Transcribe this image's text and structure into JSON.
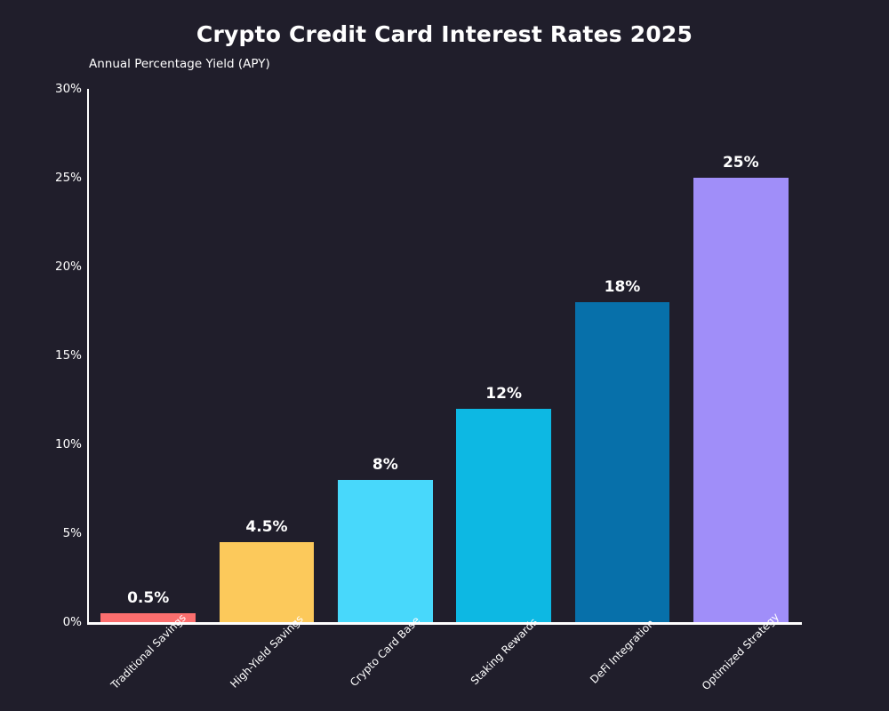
{
  "figure": {
    "background": "#201e2b",
    "axis_color": "#ffffff",
    "text_color": "#ffffff"
  },
  "chart_data": {
    "type": "bar",
    "title": "Crypto Credit Card Interest Rates 2025",
    "subtitle": "Annual Percentage Yield (APY)",
    "categories": [
      "Traditional Savings",
      "High-Yield Savings",
      "Crypto Card Base",
      "Staking Rewards",
      "DeFi Integration",
      "Optimized Strategy"
    ],
    "values": [
      0.5,
      4.5,
      8,
      12,
      18,
      25
    ],
    "value_labels": [
      "0.5%",
      "4.5%",
      "8%",
      "12%",
      "18%",
      "25%"
    ],
    "bar_colors": [
      "#fb6e6e",
      "#fcc95b",
      "#48d8fb",
      "#0db8e3",
      "#0770aa",
      "#a08ef9"
    ],
    "xlabel": "",
    "ylabel": "",
    "ylim": [
      0,
      30
    ],
    "yticks": [
      0,
      5,
      10,
      15,
      20,
      25,
      30
    ],
    "ytick_labels": [
      "0%",
      "5%",
      "10%",
      "15%",
      "20%",
      "25%",
      "30%"
    ],
    "grid": false,
    "legend": "none",
    "bar_label_position": "above"
  }
}
